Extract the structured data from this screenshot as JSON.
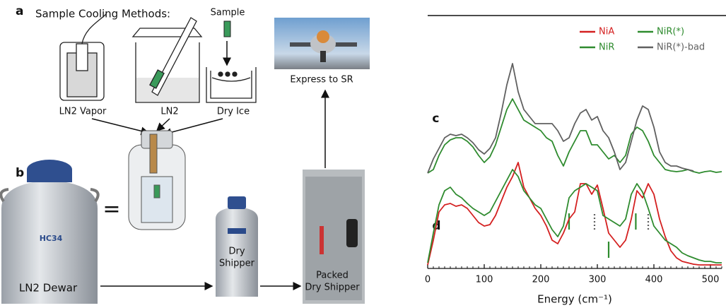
{
  "diagram": {
    "panel_a": "a",
    "panel_b": "b",
    "title": "Sample Cooling Methods:",
    "sample": "Sample",
    "methods": [
      "LN2 Vapor",
      "LN2",
      "Dry Ice"
    ],
    "express": "Express to SR",
    "equals": "=",
    "dewar_badge": "HC34",
    "dewar": "LN2 Dewar",
    "shipper": [
      "Dry",
      "Shipper"
    ],
    "packed": [
      "Packed",
      "Dry Shipper"
    ]
  },
  "chart_data": {
    "type": "line",
    "xlabel": "Energy (cm⁻¹)",
    "group_labels": [
      {
        "text": "c",
        "x": 8,
        "y": 212
      },
      {
        "text": "d",
        "x": 8,
        "y": 60
      }
    ],
    "x": [
      0,
      10,
      20,
      30,
      40,
      50,
      60,
      70,
      80,
      90,
      100,
      110,
      120,
      130,
      140,
      150,
      160,
      170,
      180,
      190,
      200,
      210,
      220,
      230,
      240,
      250,
      260,
      270,
      280,
      290,
      300,
      310,
      320,
      330,
      340,
      350,
      360,
      370,
      380,
      390,
      400,
      410,
      420,
      430,
      440,
      450,
      460,
      470,
      480,
      490,
      500,
      510,
      520
    ],
    "xlim": [
      0,
      520
    ],
    "xticks": [
      0,
      100,
      200,
      300,
      400,
      500
    ],
    "ylim": [
      0,
      360
    ],
    "series": [
      {
        "name": "NiA",
        "color": "#d42020",
        "values": [
          5,
          40,
          80,
          90,
          92,
          88,
          90,
          85,
          75,
          65,
          60,
          62,
          75,
          95,
          115,
          130,
          150,
          115,
          100,
          85,
          75,
          60,
          40,
          35,
          50,
          70,
          80,
          120,
          120,
          105,
          118,
          85,
          50,
          40,
          30,
          40,
          70,
          110,
          100,
          120,
          105,
          70,
          45,
          25,
          15,
          10,
          8,
          6,
          5,
          5,
          5,
          5,
          5
        ]
      },
      {
        "name": "NiR(*)",
        "color": "#2e8b2e",
        "values": [
          135,
          140,
          160,
          175,
          182,
          185,
          185,
          180,
          172,
          160,
          150,
          158,
          175,
          200,
          225,
          240,
          225,
          210,
          205,
          200,
          195,
          185,
          180,
          160,
          145,
          165,
          180,
          195,
          195,
          175,
          175,
          165,
          155,
          160,
          150,
          160,
          190,
          200,
          195,
          180,
          160,
          150,
          140,
          138,
          137,
          138,
          140,
          137,
          135,
          137,
          138,
          136,
          137
        ]
      },
      {
        "name": "NiR",
        "color": "#2e8b2e",
        "values": [
          8,
          50,
          90,
          110,
          115,
          105,
          100,
          92,
          85,
          80,
          75,
          80,
          95,
          110,
          125,
          140,
          130,
          110,
          100,
          90,
          85,
          70,
          55,
          45,
          60,
          100,
          110,
          115,
          120,
          115,
          110,
          75,
          70,
          65,
          60,
          70,
          105,
          120,
          108,
          85,
          60,
          50,
          40,
          35,
          30,
          22,
          18,
          15,
          12,
          10,
          10,
          8,
          8
        ]
      },
      {
        "name": "NiR(*)-bad",
        "color": "#606060",
        "values": [
          135,
          155,
          170,
          185,
          190,
          188,
          190,
          185,
          178,
          168,
          162,
          170,
          185,
          220,
          260,
          290,
          250,
          225,
          215,
          205,
          205,
          205,
          205,
          195,
          180,
          185,
          205,
          220,
          225,
          210,
          215,
          195,
          185,
          165,
          140,
          150,
          180,
          210,
          230,
          225,
          200,
          165,
          150,
          145,
          145,
          142,
          140,
          138,
          null,
          null,
          null,
          null,
          null
        ]
      }
    ],
    "markers": [
      {
        "x": 250,
        "y": [
          55,
          78
        ],
        "color": "#2e8b2e",
        "dashed": false
      },
      {
        "x": 295,
        "y": [
          55,
          78
        ],
        "color": "#606060",
        "dashed": true
      },
      {
        "x": 368,
        "y": [
          55,
          78
        ],
        "color": "#2e8b2e",
        "dashed": false
      },
      {
        "x": 390,
        "y": [
          55,
          78
        ],
        "color": "#606060",
        "dashed": true
      },
      {
        "x": 320,
        "y": [
          15,
          38
        ],
        "color": "#2e8b2e",
        "dashed": false
      }
    ]
  }
}
